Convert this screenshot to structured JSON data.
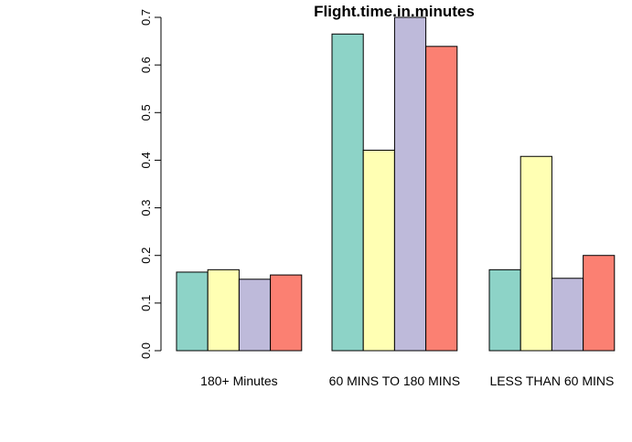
{
  "chart_data": {
    "type": "bar",
    "title": "Flight.time.in.minutes",
    "xlabel": "",
    "ylabel": "",
    "categories": [
      "180+ Minutes",
      "60 MINS TO 180 MINS",
      "LESS THAN 60 MINS"
    ],
    "series": [
      {
        "color": "#8DD3C7",
        "values": [
          0.165,
          0.665,
          0.17
        ]
      },
      {
        "color": "#FFFFB3",
        "values": [
          0.17,
          0.421,
          0.408
        ]
      },
      {
        "color": "#BEBADA",
        "values": [
          0.15,
          0.7,
          0.152
        ]
      },
      {
        "color": "#FB8072",
        "values": [
          0.159,
          0.639,
          0.2
        ]
      }
    ],
    "ylim": [
      0,
      0.7
    ],
    "yticks": [
      "0.0",
      "0.1",
      "0.2",
      "0.3",
      "0.4",
      "0.5",
      "0.6",
      "0.7"
    ],
    "grid": false,
    "legend": "none"
  }
}
